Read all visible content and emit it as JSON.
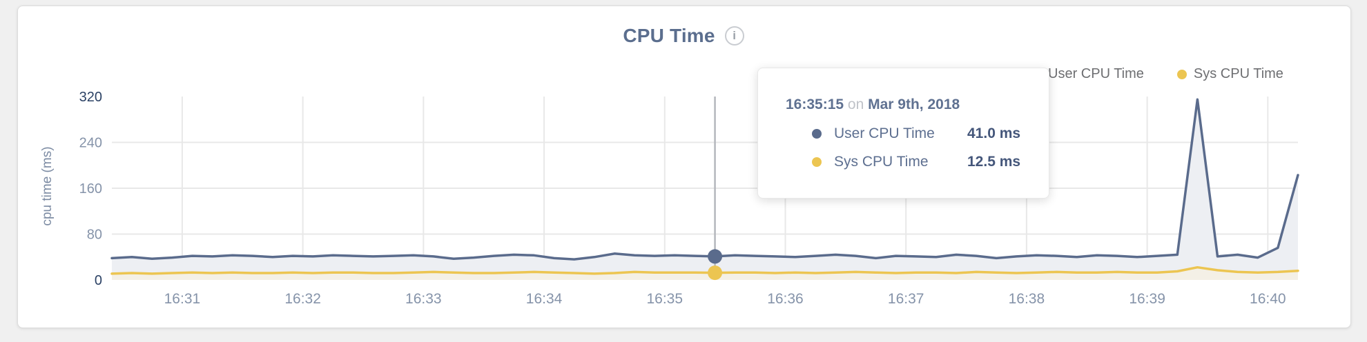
{
  "header": {
    "title": "CPU Time",
    "info_icon": "i"
  },
  "legend": {
    "items": [
      {
        "label": "User CPU Time",
        "color": "#5a6b8c"
      },
      {
        "label": "Sys CPU Time",
        "color": "#ecc551"
      }
    ]
  },
  "tooltip": {
    "time": "16:35:15",
    "conjunction": "on",
    "date": "Mar 9th, 2018",
    "rows": [
      {
        "label": "User CPU Time",
        "value": "41.0 ms",
        "color": "#5a6b8c"
      },
      {
        "label": "Sys CPU Time",
        "value": "12.5 ms",
        "color": "#ecc551"
      }
    ]
  },
  "chart_data": {
    "type": "area",
    "title": "CPU Time",
    "ylabel": "cpu time (ms)",
    "ylim": [
      0,
      320
    ],
    "grid": true,
    "legend_position": "top-right",
    "y_ticks": [
      {
        "value": 320,
        "label": "320",
        "emphasis": true
      },
      {
        "value": 240,
        "label": "240",
        "emphasis": false
      },
      {
        "value": 160,
        "label": "160",
        "emphasis": false
      },
      {
        "value": 80,
        "label": "80",
        "emphasis": false
      },
      {
        "value": 0,
        "label": "0",
        "emphasis": true
      }
    ],
    "x_tick_labels": [
      "16:31",
      "16:32",
      "16:33",
      "16:34",
      "16:35",
      "16:36",
      "16:37",
      "16:38",
      "16:39",
      "16:40"
    ],
    "x_interval_seconds": 10,
    "hover_index": 30,
    "hover_time": "16:35:15",
    "series": [
      {
        "name": "User CPU Time",
        "color": "#5a6b8c",
        "fill": "#edeff3",
        "values": [
          38,
          40,
          37,
          39,
          42,
          41,
          43,
          42,
          40,
          42,
          41,
          43,
          42,
          41,
          42,
          43,
          41,
          37,
          39,
          42,
          44,
          43,
          38,
          36,
          40,
          46,
          43,
          42,
          43,
          42,
          41,
          43,
          42,
          41,
          40,
          42,
          44,
          42,
          38,
          42,
          41,
          40,
          44,
          42,
          38,
          41,
          43,
          42,
          40,
          43,
          42,
          40,
          42,
          44,
          315,
          41,
          44,
          39,
          56,
          183
        ]
      },
      {
        "name": "Sys CPU Time",
        "color": "#ecc551",
        "fill": "#f4f0e6",
        "values": [
          11,
          12,
          11,
          12,
          13,
          12,
          13,
          12,
          12,
          13,
          12,
          13,
          13,
          12,
          12,
          13,
          14,
          13,
          12,
          12,
          13,
          14,
          13,
          12,
          11,
          12,
          14,
          13,
          13,
          13,
          12.5,
          13,
          13,
          12,
          13,
          12,
          13,
          14,
          13,
          12,
          13,
          13,
          12,
          14,
          13,
          12,
          13,
          14,
          13,
          13,
          14,
          13,
          13,
          15,
          22,
          17,
          14,
          13,
          14,
          16
        ]
      }
    ],
    "colors": {
      "grid": "#e8e8e8",
      "hover_line": "#b4b7bc",
      "axis_label": "#8593a9",
      "axis_label_emphasis": "#2b4164"
    }
  }
}
